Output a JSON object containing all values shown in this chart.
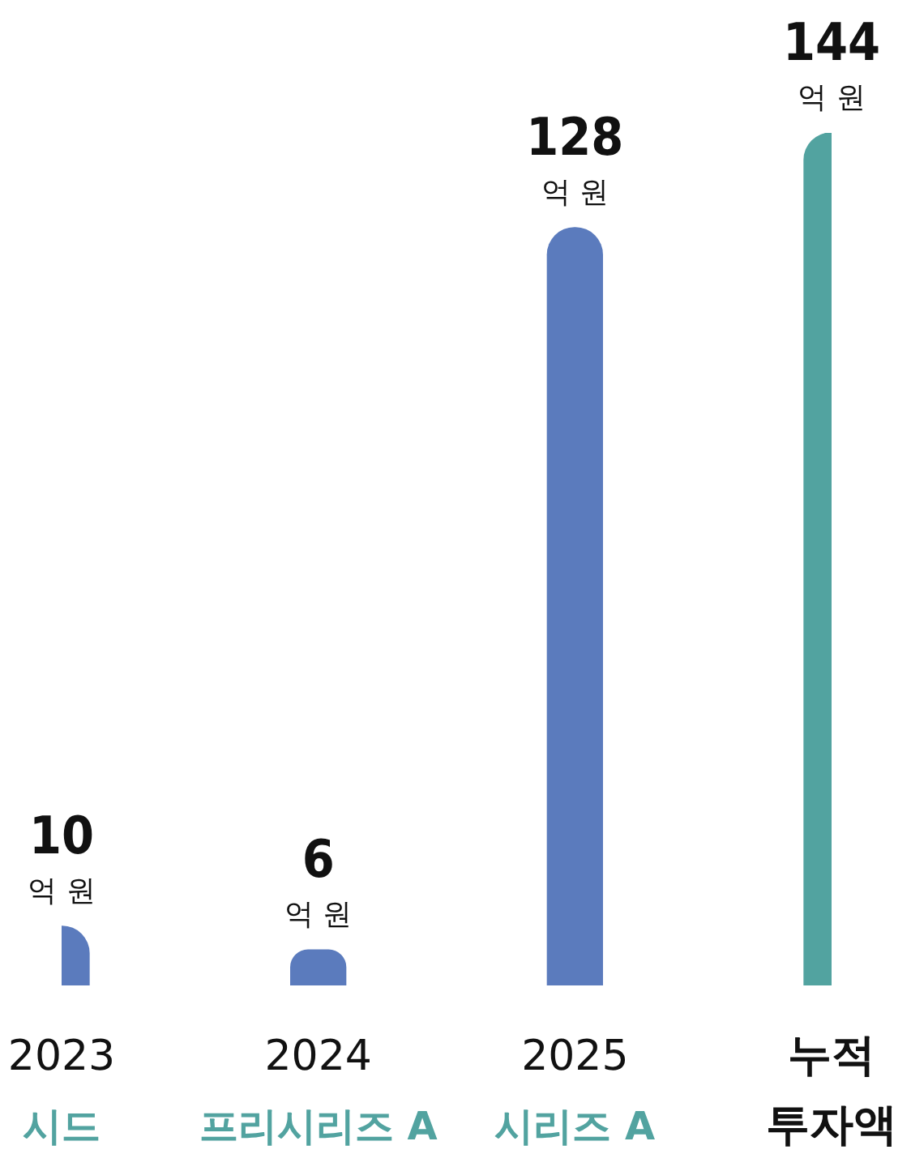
{
  "chart_data": {
    "type": "bar",
    "categories": [
      "2023\n시드",
      "2024\n프리시리즈 A",
      "2025\n시리즈 A",
      "누적\n투자액"
    ],
    "values": [
      10,
      6,
      128,
      144
    ],
    "colors": [
      "#5b7bbd",
      "#5b7bbd",
      "#5b7bbd",
      "#52a3a0"
    ],
    "value_labels": [
      "10 억 원",
      "6 억 원",
      "128 억 원",
      "144 억 원"
    ],
    "legend": false
  }
}
